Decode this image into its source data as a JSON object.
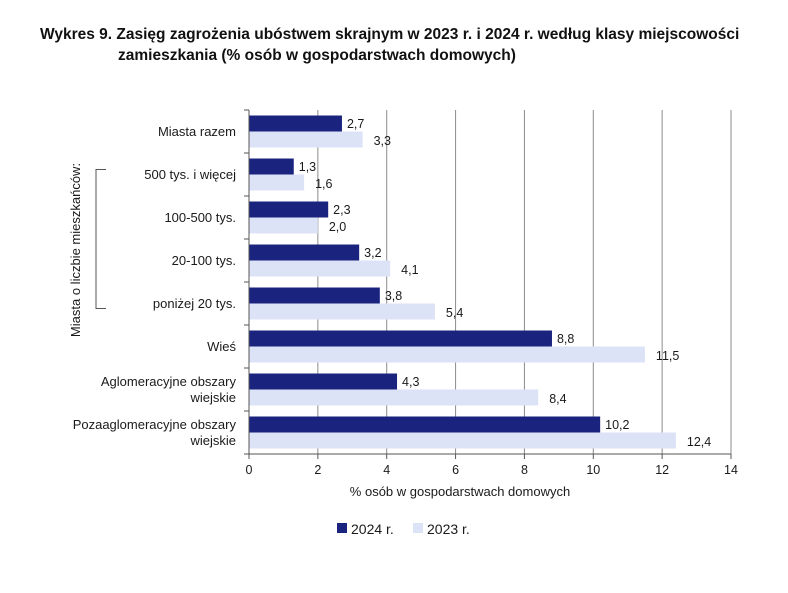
{
  "title_line1": "Wykres 9. Zasięg zagrożenia ubóstwem skrajnym w 2023 r. i 2024 r. według klasy miejscowości",
  "title_line2": "zamieszkania (% osób w gospodarstwach domowych)",
  "colors": {
    "series_2024": "#1a237e",
    "series_2023": "#dde3f7",
    "grid": "#8c8c8c",
    "axis": "#555555"
  },
  "chart_data": {
    "type": "bar",
    "orientation": "horizontal",
    "title": "Wykres 9. Zasięg zagrożenia ubóstwem skrajnym w 2023 r. i 2024 r. według klasy miejscowości zamieszkania (% osób w gospodarstwach domowych)",
    "categories": [
      [
        "Miasta razem"
      ],
      [
        "500 tys. i więcej"
      ],
      [
        "100-500 tys."
      ],
      [
        "20-100 tys."
      ],
      [
        "poniżej 20 tys."
      ],
      [
        "Wieś"
      ],
      [
        "Aglomeracyjne obszary",
        "wiejskie"
      ],
      [
        "Pozaaglomeracyjne obszary",
        "wiejskie"
      ]
    ],
    "series": [
      {
        "name": "2024 r.",
        "values": [
          2.7,
          1.3,
          2.3,
          3.2,
          3.8,
          8.8,
          4.3,
          10.2
        ],
        "labels": [
          "2,7",
          "1,3",
          "2,3",
          "3,2",
          "3,8",
          "8,8",
          "4,3",
          "10,2"
        ]
      },
      {
        "name": "2023 r.",
        "values": [
          3.3,
          1.6,
          2.0,
          4.1,
          5.4,
          11.5,
          8.4,
          12.4
        ],
        "labels": [
          "3,3",
          "1,6",
          "2,0",
          "4,1",
          "5,4",
          "11,5",
          "8,4",
          "12,4"
        ]
      }
    ],
    "group_label": "Miasta o liczbie mieszkańców:",
    "xlabel": "% osób w gospodarstwach domowych",
    "xlim": [
      0,
      14
    ],
    "xticks": [
      0,
      2,
      4,
      6,
      8,
      10,
      12,
      14
    ],
    "grid": true,
    "legend_position": "bottom"
  }
}
